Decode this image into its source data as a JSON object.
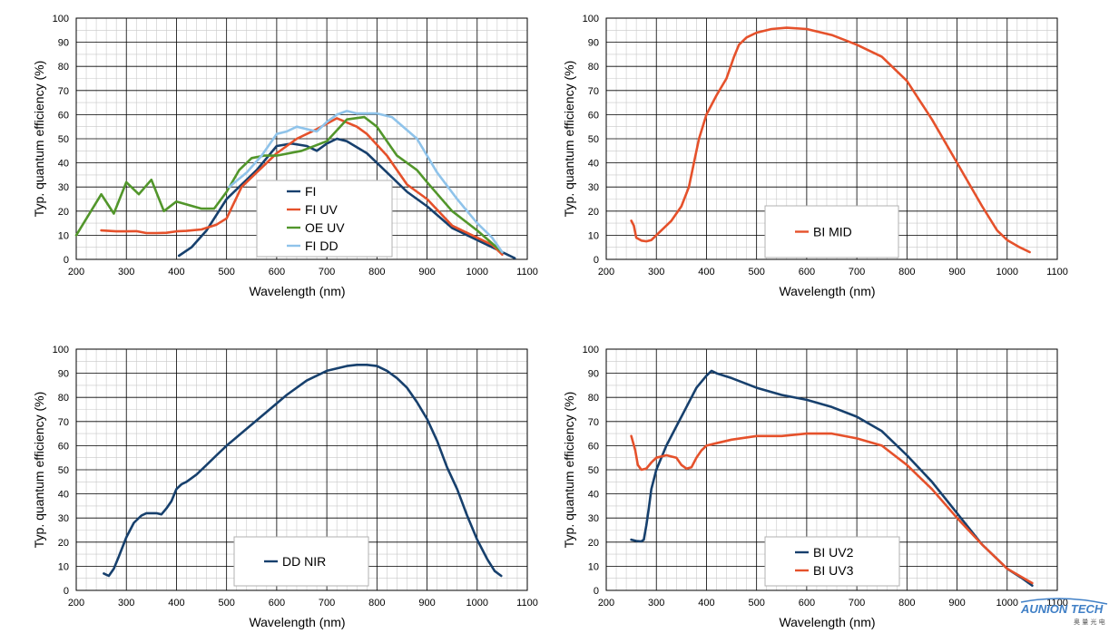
{
  "chart_data": [
    {
      "type": "line",
      "xlabel": "Wavelength (nm)",
      "ylabel": "Typ. quantum efficiency (%)",
      "xlim": [
        200,
        1100
      ],
      "ylim": [
        0,
        100
      ],
      "xticks": [
        "200",
        "300",
        "400",
        "500",
        "600",
        "700",
        "800",
        "900",
        "1000",
        "1100"
      ],
      "yticks": [
        "0",
        "10",
        "20",
        "30",
        "40",
        "50",
        "60",
        "70",
        "80",
        "90",
        "100"
      ],
      "grid": true,
      "legend_position": "center",
      "series": [
        {
          "name": "FI",
          "color": "#17406d",
          "x": [
            405,
            430,
            460,
            500,
            530,
            560,
            600,
            630,
            660,
            680,
            700,
            720,
            740,
            780,
            820,
            860,
            900,
            950,
            1000,
            1050,
            1075
          ],
          "y": [
            1.5,
            5,
            12,
            25,
            31,
            37,
            47,
            48,
            47,
            45,
            48,
            50,
            49,
            44,
            36,
            28,
            22,
            13,
            8,
            3,
            0.5
          ]
        },
        {
          "name": "FI UV",
          "color": "#e5512b",
          "x": [
            250,
            280,
            300,
            320,
            340,
            360,
            380,
            400,
            420,
            450,
            480,
            500,
            530,
            560,
            600,
            640,
            680,
            720,
            760,
            780,
            820,
            860,
            900,
            950,
            1000,
            1030,
            1050
          ],
          "y": [
            12,
            11.6,
            11.6,
            11.7,
            10.9,
            10.9,
            11,
            11.6,
            11.8,
            12.4,
            14.4,
            17,
            30,
            36,
            44,
            50,
            54,
            58.5,
            55,
            52,
            43,
            31,
            25,
            14,
            9,
            6,
            2
          ]
        },
        {
          "name": "OE UV",
          "color": "#52962b",
          "x": [
            200,
            250,
            275,
            300,
            325,
            350,
            375,
            400,
            450,
            475,
            500,
            525,
            550,
            575,
            600,
            650,
            700,
            740,
            775,
            800,
            840,
            880,
            900,
            950,
            1000,
            1050
          ],
          "y": [
            10,
            27,
            19,
            32,
            27,
            33,
            20,
            24,
            21,
            21,
            28,
            37,
            42,
            43,
            43,
            45,
            49,
            58,
            59,
            55,
            43,
            37,
            32,
            20,
            12,
            3
          ]
        },
        {
          "name": "FI DD",
          "color": "#8fc3ea",
          "x": [
            505,
            540,
            570,
            600,
            620,
            640,
            660,
            680,
            700,
            720,
            740,
            760,
            800,
            830,
            880,
            920,
            960,
            1000,
            1030,
            1050
          ],
          "y": [
            30,
            36,
            43,
            52,
            53,
            55,
            54,
            53,
            57,
            60,
            61.5,
            60.5,
            60.5,
            59,
            50,
            36,
            25,
            15,
            9,
            3
          ]
        }
      ]
    },
    {
      "type": "line",
      "xlabel": "Wavelength (nm)",
      "ylabel": "Typ. quantum efficiency (%)",
      "xlim": [
        200,
        1100
      ],
      "ylim": [
        0,
        100
      ],
      "xticks": [
        "200",
        "300",
        "400",
        "500",
        "600",
        "700",
        "800",
        "900",
        "1000",
        "1100"
      ],
      "yticks": [
        "0",
        "10",
        "20",
        "30",
        "40",
        "50",
        "60",
        "70",
        "80",
        "90",
        "100"
      ],
      "grid": true,
      "legend_position": "bottom-right",
      "series": [
        {
          "name": "BI MID",
          "color": "#e5512b",
          "x": [
            250,
            255,
            260,
            270,
            280,
            290,
            300,
            330,
            350,
            365,
            375,
            385,
            400,
            420,
            440,
            455,
            465,
            480,
            500,
            530,
            560,
            600,
            650,
            700,
            750,
            800,
            850,
            900,
            950,
            980,
            1000,
            1025,
            1045
          ],
          "y": [
            16,
            14,
            9,
            7.8,
            7.5,
            8,
            10,
            16,
            22,
            30,
            40,
            50,
            60,
            68,
            75,
            84,
            89,
            92,
            94,
            95.5,
            96,
            95.5,
            93,
            89,
            84,
            74,
            58,
            40,
            22,
            12,
            8,
            5,
            3
          ]
        }
      ]
    },
    {
      "type": "line",
      "xlabel": "Wavelength (nm)",
      "ylabel": "Typ. quantum efficiency (%)",
      "xlim": [
        200,
        1100
      ],
      "ylim": [
        0,
        100
      ],
      "xticks": [
        "200",
        "300",
        "400",
        "500",
        "600",
        "700",
        "800",
        "900",
        "1000",
        "1100"
      ],
      "yticks": [
        "0",
        "10",
        "20",
        "30",
        "40",
        "50",
        "60",
        "70",
        "80",
        "90",
        "100"
      ],
      "grid": true,
      "legend_position": "bottom-center",
      "series": [
        {
          "name": "DD NIR",
          "color": "#17406d",
          "x": [
            255,
            265,
            275,
            285,
            300,
            315,
            330,
            340,
            350,
            360,
            370,
            380,
            390,
            400,
            410,
            420,
            440,
            460,
            480,
            500,
            540,
            580,
            620,
            660,
            700,
            740,
            760,
            780,
            800,
            820,
            840,
            860,
            880,
            900,
            920,
            940,
            960,
            980,
            1000,
            1020,
            1035,
            1048
          ],
          "y": [
            7,
            6,
            9,
            14,
            22,
            28,
            31,
            32,
            32,
            32,
            31.5,
            34,
            37,
            42,
            44,
            45,
            48,
            52,
            56,
            60,
            67,
            74,
            81,
            87,
            91,
            93,
            93.5,
            93.5,
            93,
            91,
            88,
            84,
            78,
            71,
            62,
            51,
            42,
            31,
            21,
            13,
            8,
            6
          ]
        }
      ]
    },
    {
      "type": "line",
      "xlabel": "Wavelength (nm)",
      "ylabel": "Typ. quantum efficiency (%)",
      "xlim": [
        200,
        1100
      ],
      "ylim": [
        0,
        100
      ],
      "xticks": [
        "200",
        "300",
        "400",
        "500",
        "600",
        "700",
        "800",
        "900",
        "1000",
        "1100"
      ],
      "yticks": [
        "0",
        "10",
        "20",
        "30",
        "40",
        "50",
        "60",
        "70",
        "80",
        "90",
        "100"
      ],
      "grid": true,
      "legend_position": "bottom-right",
      "series": [
        {
          "name": "BI UV2",
          "color": "#17406d",
          "x": [
            250,
            260,
            270,
            275,
            280,
            285,
            290,
            300,
            320,
            340,
            360,
            380,
            400,
            410,
            420,
            450,
            500,
            550,
            600,
            650,
            700,
            750,
            800,
            850,
            900,
            950,
            1000,
            1030,
            1050
          ],
          "y": [
            21,
            20.5,
            20.3,
            21,
            27,
            34,
            42,
            50,
            60,
            68,
            76,
            84,
            89,
            91,
            90,
            88,
            84,
            81,
            79,
            76,
            72,
            66,
            56,
            45,
            32,
            19,
            9,
            5,
            2
          ]
        },
        {
          "name": "BI UV3",
          "color": "#e5512b",
          "x": [
            250,
            258,
            263,
            270,
            280,
            290,
            300,
            320,
            340,
            350,
            360,
            370,
            380,
            390,
            400,
            420,
            450,
            500,
            550,
            600,
            650,
            700,
            750,
            800,
            850,
            900,
            950,
            1000,
            1050
          ],
          "y": [
            64,
            58,
            52,
            50,
            50.5,
            53,
            55,
            56,
            55,
            52,
            50.5,
            51,
            55,
            58,
            60,
            61,
            62.5,
            64,
            64,
            65,
            65,
            63,
            60,
            52,
            42,
            30,
            19,
            9,
            3
          ]
        }
      ]
    }
  ],
  "watermark": {
    "brand": "AUNION TECH",
    "subtitle": "奥 量 光 电"
  }
}
